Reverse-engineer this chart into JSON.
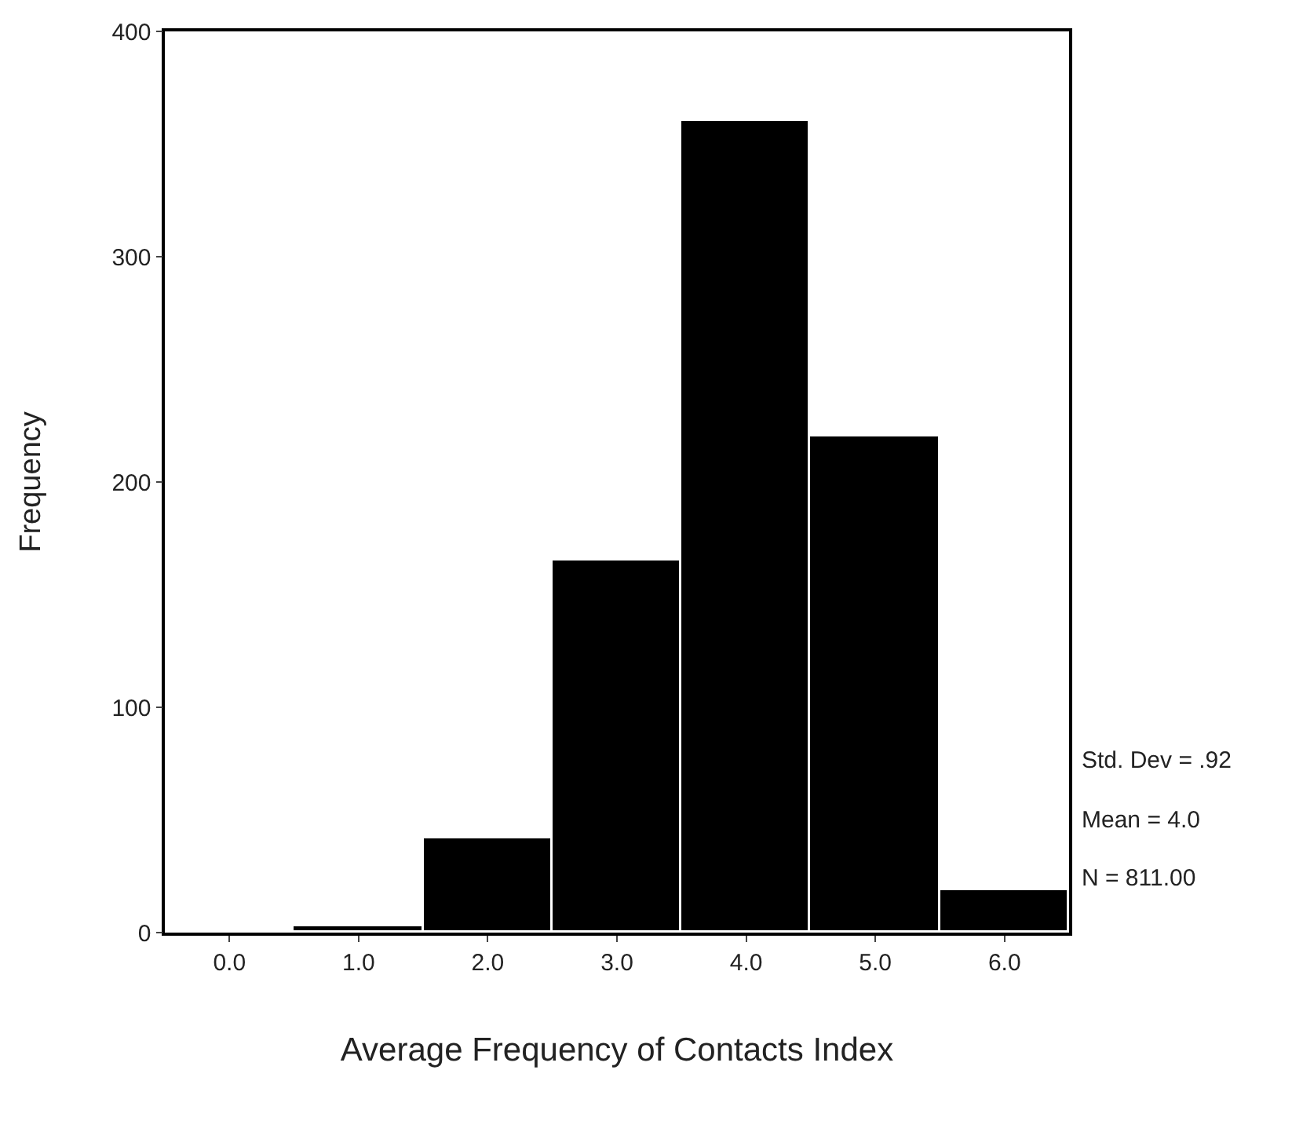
{
  "chart_data": {
    "type": "histogram",
    "xlabel": "Average Frequency of Contacts Index",
    "ylabel": "Frequency",
    "bins": [
      -0.5,
      0.5,
      1.5,
      2.5,
      3.5,
      4.5,
      5.5,
      6.5
    ],
    "values": [
      1,
      3,
      42,
      165,
      360,
      220,
      19
    ],
    "color": "#000000",
    "xlim": [
      -0.5,
      6.5
    ],
    "xticks": [
      {
        "value": 0,
        "label": "0.0"
      },
      {
        "value": 1,
        "label": "1.0"
      },
      {
        "value": 2,
        "label": "2.0"
      },
      {
        "value": 3,
        "label": "3.0"
      },
      {
        "value": 4,
        "label": "4.0"
      },
      {
        "value": 5,
        "label": "5.0"
      },
      {
        "value": 6,
        "label": "6.0"
      }
    ],
    "ylim": [
      0,
      400
    ],
    "yticks": [
      0,
      100,
      200,
      300,
      400
    ],
    "annotations": [
      "Std. Dev = .92",
      "Mean = 4.0",
      "N = 811.00"
    ]
  }
}
